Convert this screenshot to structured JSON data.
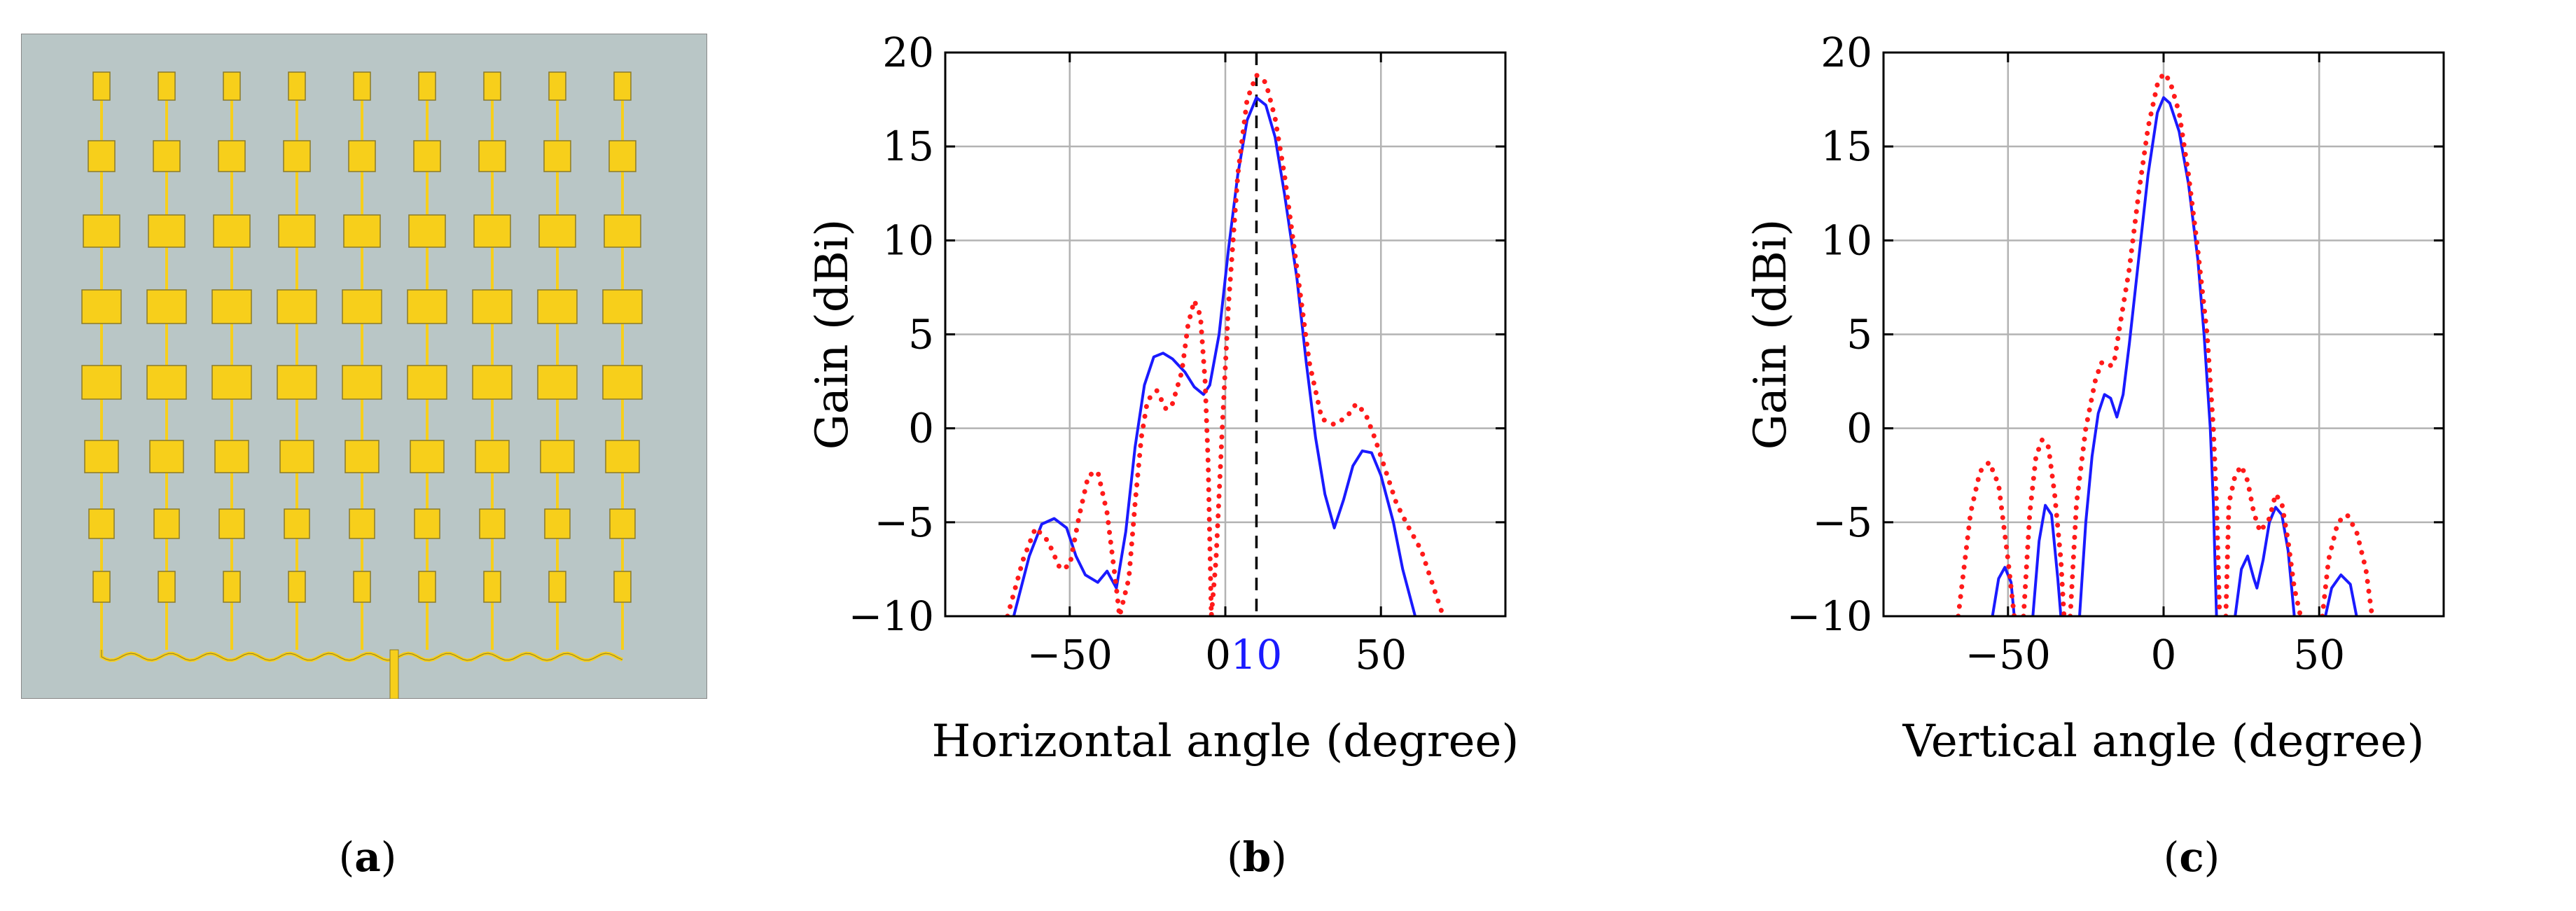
{
  "panel_a": {
    "caption_letter": "a",
    "colors": {
      "substrate": "#b9c6c6",
      "patch": "#f7cf1b",
      "edge": "#8a7a2a"
    }
  },
  "chart_data": [
    {
      "type": "line",
      "panel": "b",
      "caption_letter": "b",
      "xlabel": "Horizontal angle (degree)",
      "ylabel": "Gain (dBi)",
      "xlim": [
        -90,
        90
      ],
      "ylim": [
        -10,
        20
      ],
      "xticks": [
        "-50",
        "0",
        "50"
      ],
      "xtick_values": [
        -50,
        0,
        50
      ],
      "yticks": [
        "-10",
        "-5",
        "0",
        "5",
        "10",
        "15",
        "20"
      ],
      "ytick_values": [
        -10,
        -5,
        0,
        5,
        10,
        15,
        20
      ],
      "grid": true,
      "marker": {
        "x": 10,
        "label": "10",
        "color": "#1a1aff"
      },
      "series": [
        {
          "color": "#1a1aff",
          "style": "solid",
          "points": [
            [
              -68,
              -10
            ],
            [
              -63,
              -6.8
            ],
            [
              -59,
              -5.1
            ],
            [
              -55,
              -4.8
            ],
            [
              -51,
              -5.3
            ],
            [
              -48,
              -6.8
            ],
            [
              -45,
              -7.8
            ],
            [
              -41,
              -8.2
            ],
            [
              -38,
              -7.6
            ],
            [
              -35,
              -8.5
            ],
            [
              -32,
              -5.5
            ],
            [
              -29,
              -1
            ],
            [
              -26,
              2.3
            ],
            [
              -23,
              3.8
            ],
            [
              -20,
              4
            ],
            [
              -17,
              3.7
            ],
            [
              -13,
              3
            ],
            [
              -10,
              2.2
            ],
            [
              -7,
              1.8
            ],
            [
              -5,
              2.3
            ],
            [
              -2,
              5
            ],
            [
              1,
              9.5
            ],
            [
              4,
              13.5
            ],
            [
              7,
              16.4
            ],
            [
              10,
              17.6
            ],
            [
              13,
              17.2
            ],
            [
              16,
              15.5
            ],
            [
              19,
              12.5
            ],
            [
              23,
              8
            ],
            [
              26,
              3.5
            ],
            [
              29,
              -0.5
            ],
            [
              32,
              -3.5
            ],
            [
              35,
              -5.3
            ],
            [
              38,
              -3.8
            ],
            [
              41,
              -2
            ],
            [
              44,
              -1.2
            ],
            [
              47,
              -1.3
            ],
            [
              50,
              -2.5
            ],
            [
              54,
              -5
            ],
            [
              57,
              -7.5
            ],
            [
              61,
              -10
            ]
          ]
        },
        {
          "color": "#ff1a1a",
          "style": "dotted",
          "points": [
            [
              -70,
              -10
            ],
            [
              -65,
              -7
            ],
            [
              -61,
              -5.3
            ],
            [
              -57,
              -6
            ],
            [
              -53,
              -7.5
            ],
            [
              -50,
              -7.3
            ],
            [
              -47,
              -4.7
            ],
            [
              -44,
              -2.5
            ],
            [
              -41,
              -2.3
            ],
            [
              -38,
              -4.5
            ],
            [
              -35,
              -8.5
            ],
            [
              -34,
              -10
            ],
            [
              -31,
              -8
            ],
            [
              -29,
              -4
            ],
            [
              -27,
              -0.5
            ],
            [
              -25,
              1.5
            ],
            [
              -22,
              2
            ],
            [
              -19,
              1
            ],
            [
              -17,
              1.3
            ],
            [
              -14,
              3
            ],
            [
              -12,
              5.5
            ],
            [
              -10,
              6.8
            ],
            [
              -8,
              6
            ],
            [
              -6.5,
              2.5
            ],
            [
              -5.5,
              -2
            ],
            [
              -4.5,
              -10
            ],
            [
              -3,
              -7
            ],
            [
              -1,
              0
            ],
            [
              1,
              6.5
            ],
            [
              4,
              13.5
            ],
            [
              7,
              17.5
            ],
            [
              10,
              18.8
            ],
            [
              13,
              18.4
            ],
            [
              16,
              16.5
            ],
            [
              19,
              13.5
            ],
            [
              23,
              8.5
            ],
            [
              27,
              3.5
            ],
            [
              31,
              0.5
            ],
            [
              35,
              0.2
            ],
            [
              39,
              0.6
            ],
            [
              42,
              1.3
            ],
            [
              45,
              0.8
            ],
            [
              48,
              -0.5
            ],
            [
              51,
              -2
            ],
            [
              55,
              -4
            ],
            [
              59,
              -5.3
            ],
            [
              63,
              -6.5
            ],
            [
              66,
              -8
            ],
            [
              70,
              -10
            ]
          ]
        }
      ]
    },
    {
      "type": "line",
      "panel": "c",
      "caption_letter": "c",
      "xlabel": "Vertical angle (degree)",
      "ylabel": "Gain (dBi)",
      "xlim": [
        -90,
        90
      ],
      "ylim": [
        -10,
        20
      ],
      "xticks": [
        "-50",
        "0",
        "50"
      ],
      "xtick_values": [
        -50,
        0,
        50
      ],
      "yticks": [
        "-10",
        "-5",
        "0",
        "5",
        "10",
        "15",
        "20"
      ],
      "ytick_values": [
        -10,
        -5,
        0,
        5,
        10,
        15,
        20
      ],
      "grid": true,
      "series": [
        {
          "color": "#1a1aff",
          "style": "solid",
          "segments": [
            [
              [
                -55,
                -10
              ],
              [
                -53,
                -8
              ],
              [
                -51,
                -7.4
              ],
              [
                -49,
                -8.2
              ],
              [
                -48,
                -10
              ]
            ],
            [
              [
                -42,
                -10
              ],
              [
                -40,
                -6
              ],
              [
                -38,
                -4.1
              ],
              [
                -36,
                -4.6
              ],
              [
                -34,
                -8
              ],
              [
                -33,
                -10
              ]
            ],
            [
              [
                -27,
                -10
              ],
              [
                -25,
                -5
              ],
              [
                -23,
                -1.5
              ],
              [
                -21,
                0.8
              ],
              [
                -19,
                1.8
              ],
              [
                -17,
                1.6
              ],
              [
                -15,
                0.6
              ],
              [
                -13,
                1.8
              ],
              [
                -11,
                4.5
              ],
              [
                -8,
                9
              ],
              [
                -5,
                13.5
              ],
              [
                -2,
                16.8
              ],
              [
                0,
                17.6
              ],
              [
                2,
                17.3
              ],
              [
                5,
                15.8
              ],
              [
                8,
                13
              ],
              [
                11,
                9
              ],
              [
                13,
                5
              ],
              [
                15,
                0
              ],
              [
                16,
                -4
              ],
              [
                17,
                -10
              ]
            ],
            [
              [
                23,
                -10
              ],
              [
                25,
                -7.5
              ],
              [
                27,
                -6.8
              ],
              [
                29,
                -8
              ],
              [
                30,
                -8.5
              ],
              [
                32,
                -7
              ],
              [
                34,
                -5
              ],
              [
                36,
                -4.2
              ],
              [
                38,
                -4.6
              ],
              [
                40,
                -6.5
              ],
              [
                42,
                -10
              ]
            ],
            [
              [
                52,
                -10
              ],
              [
                54,
                -8.5
              ],
              [
                57,
                -7.8
              ],
              [
                60,
                -8.3
              ],
              [
                62,
                -10
              ]
            ]
          ]
        },
        {
          "color": "#ff1a1a",
          "style": "dotted",
          "segments": [
            [
              [
                -66,
                -10
              ],
              [
                -62,
                -4.5
              ],
              [
                -59,
                -2.3
              ],
              [
                -56,
                -1.8
              ],
              [
                -53,
                -3
              ],
              [
                -50,
                -7
              ],
              [
                -48,
                -10
              ]
            ],
            [
              [
                -45,
                -10
              ],
              [
                -43,
                -4.5
              ],
              [
                -41,
                -1.5
              ],
              [
                -39,
                -0.6
              ],
              [
                -37,
                -1
              ],
              [
                -35,
                -3.5
              ],
              [
                -33,
                -7
              ],
              [
                -32,
                -10
              ]
            ],
            [
              [
                -30,
                -10
              ],
              [
                -28,
                -4
              ],
              [
                -25,
                0
              ],
              [
                -22,
                2.5
              ],
              [
                -20,
                3.5
              ],
              [
                -18,
                3.3
              ],
              [
                -16,
                3.4
              ],
              [
                -14,
                5.5
              ],
              [
                -11,
                8.5
              ],
              [
                -8,
                12.5
              ],
              [
                -5,
                16
              ],
              [
                -2,
                18.3
              ],
              [
                0,
                18.9
              ],
              [
                2,
                18.5
              ],
              [
                5,
                16.8
              ],
              [
                8,
                13.5
              ],
              [
                11,
                9.5
              ],
              [
                14,
                5
              ],
              [
                16,
                0
              ],
              [
                17,
                -4
              ],
              [
                18,
                -10
              ]
            ],
            [
              [
                20,
                -10
              ],
              [
                21,
                -4
              ],
              [
                23,
                -2.5
              ],
              [
                25,
                -2
              ],
              [
                27,
                -2.8
              ],
              [
                29,
                -4.5
              ],
              [
                31,
                -5.5
              ],
              [
                34,
                -4.8
              ],
              [
                36,
                -3.5
              ],
              [
                38,
                -4
              ],
              [
                40,
                -6
              ],
              [
                42,
                -8.5
              ],
              [
                44,
                -10
              ]
            ],
            [
              [
                51,
                -10
              ],
              [
                53,
                -7
              ],
              [
                56,
                -5
              ],
              [
                59,
                -4.6
              ],
              [
                62,
                -5.5
              ],
              [
                65,
                -7.5
              ],
              [
                67,
                -10
              ]
            ]
          ]
        }
      ]
    }
  ]
}
